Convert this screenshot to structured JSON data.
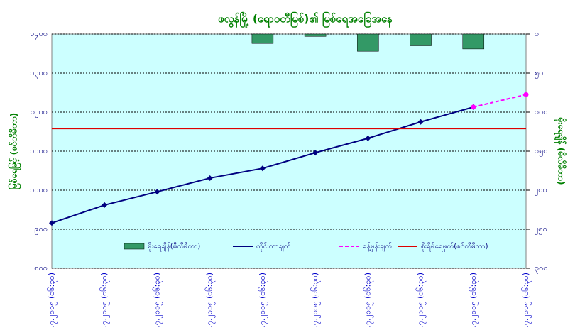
{
  "chart_data": {
    "type": "combo",
    "title": "ဖလွန်မြို့ (ရောဝတီမြစ်)၏ မြစ်ရေအခြေအနေ",
    "y_label": "မြစ်ရေမြင့် (စင်တီမီတာ)",
    "y2_label": "မိုးရေချိန် (မီလီမီတာ)",
    "categories": [
      "၈.၇.၂၀၁၅ (၀၆:၃၀)",
      "၉.၇.၂၀၁၅ (၀၆:၃၀)",
      "၁၀.၇.၂၀၁၅ (၀၆:၃၀)",
      "၁၁.၇.၂၀၁၅ (၀၆:၃၀)",
      "၁၂.၇.၂၀၁၅ (၀၆:၃၀)",
      "၁၃.၇.၂၀၁၅ (၀၆:၃၀)",
      "၁၄.၇.၂၀၁၅ (၀၆:၃၀)",
      "၁၅.၇.၂၀၁၅ (၀၆:၃၀)",
      "၁၆.၇.၂၀၁၅ (၀၆:၃၀)",
      "၁၇.၇.၂၀၁၅ (၀၆:၃၀)"
    ],
    "ylim": [
      800,
      1400
    ],
    "yticks": [
      {
        "value": 800,
        "label": "၈၀၀"
      },
      {
        "value": 900,
        "label": "၉၀၀"
      },
      {
        "value": 1000,
        "label": "၁၀၀၀"
      },
      {
        "value": 1100,
        "label": "၁၁၀၀"
      },
      {
        "value": 1200,
        "label": "၁၂၀၀"
      },
      {
        "value": 1300,
        "label": "၁၃၀၀"
      },
      {
        "value": 1400,
        "label": "၁၄၀၀"
      }
    ],
    "y2lim": [
      0,
      300
    ],
    "y2_inverted": true,
    "y2ticks": [
      {
        "value": 0,
        "label": "၀"
      },
      {
        "value": 50,
        "label": "၅၀"
      },
      {
        "value": 100,
        "label": "၁၀၀"
      },
      {
        "value": 150,
        "label": "၁၅၀"
      },
      {
        "value": 200,
        "label": "၂၀၀"
      },
      {
        "value": 250,
        "label": "၂၅၀"
      },
      {
        "value": 300,
        "label": "၃၀၀"
      }
    ],
    "grid": true,
    "series": [
      {
        "name": "မိုးရေချိန်(မီလီမီတာ)",
        "type": "bar",
        "axis": "y2",
        "color": "#339966",
        "values": [
          0,
          0,
          0,
          0,
          12,
          3,
          22,
          15,
          19,
          null
        ]
      },
      {
        "name": "တိုင်းတာချက်",
        "type": "line",
        "color": "#000080",
        "values": [
          916,
          962,
          996,
          1031,
          1056,
          1096,
          1133,
          1175,
          1213,
          null
        ]
      },
      {
        "name": "ခန့်မှန်းချက်",
        "type": "line",
        "dashed": true,
        "color": "#ff00ff",
        "values": [
          null,
          null,
          null,
          null,
          null,
          null,
          null,
          null,
          1213,
          1245
        ]
      },
      {
        "name": "စိုးရိမ်ရေမှတ်(စင်တီမီတာ)",
        "type": "hline",
        "color": "#dd0000",
        "values": [
          1158,
          1158,
          1158,
          1158,
          1158,
          1158,
          1158,
          1158,
          1158,
          1158
        ]
      }
    ]
  }
}
